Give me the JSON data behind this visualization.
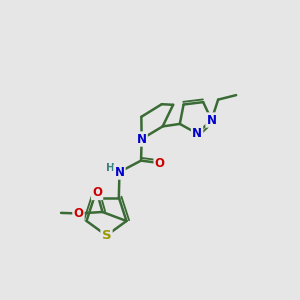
{
  "bg_color": "#e6e6e6",
  "bond_color": "#3a6b35",
  "bond_width": 1.8,
  "atom_colors": {
    "N": "#0000cc",
    "O": "#cc0000",
    "S": "#999900",
    "H": "#3a8080"
  },
  "font_size": 8.5
}
